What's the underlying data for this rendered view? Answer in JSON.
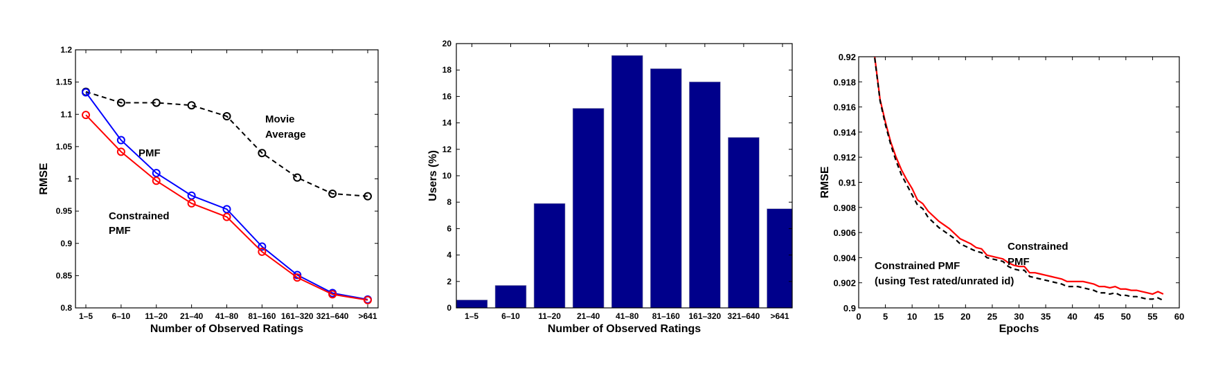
{
  "chart_data": [
    {
      "type": "line",
      "title": "",
      "xlabel": "Number of Observed Ratings",
      "ylabel": "RMSE",
      "categories": [
        "1–5",
        "6–10",
        "11–20",
        "21–40",
        "41–80",
        "81–160",
        "161–320",
        "321–640",
        ">641"
      ],
      "ylim": [
        0.8,
        1.2
      ],
      "yticks": [
        "0.8",
        "0.85",
        "0.9",
        "0.95",
        "1",
        "1.05",
        "1.1",
        "1.15",
        "1.2"
      ],
      "grid": false,
      "series": [
        {
          "name": "Movie Average",
          "color": "#000000",
          "style": "dashed",
          "marker": "circle",
          "values": [
            1.135,
            1.118,
            1.118,
            1.114,
            1.097,
            1.04,
            1.002,
            0.977,
            0.973
          ]
        },
        {
          "name": "PMF",
          "color": "#0000ff",
          "style": "solid",
          "marker": "circle",
          "values": [
            1.134,
            1.06,
            1.009,
            0.974,
            0.953,
            0.895,
            0.851,
            0.823,
            0.813
          ]
        },
        {
          "name": "Constrained PMF",
          "color": "#ff0000",
          "style": "solid",
          "marker": "circle",
          "values": [
            1.099,
            1.042,
            0.997,
            0.962,
            0.941,
            0.887,
            0.847,
            0.821,
            0.812
          ]
        }
      ],
      "annotations": [
        {
          "text": [
            "Movie",
            "Average"
          ]
        },
        {
          "text": [
            "PMF"
          ]
        },
        {
          "text": [
            "Constrained",
            "PMF"
          ]
        }
      ]
    },
    {
      "type": "bar",
      "title": "",
      "xlabel": "Number of Observed Ratings",
      "ylabel": "Users (%)",
      "categories": [
        "1–5",
        "6–10",
        "11–20",
        "21–40",
        "41–80",
        "81–160",
        "161–320",
        "321–640",
        ">641"
      ],
      "values": [
        0.6,
        1.7,
        7.9,
        15.1,
        19.1,
        18.1,
        17.1,
        12.9,
        7.5
      ],
      "ylim": [
        0,
        20
      ],
      "yticks": [
        "0",
        "2",
        "4",
        "6",
        "8",
        "10",
        "12",
        "14",
        "16",
        "18",
        "20"
      ],
      "bar_color": "#00008b",
      "grid": false
    },
    {
      "type": "line",
      "title": "",
      "xlabel": "Epochs",
      "ylabel": "RMSE",
      "xlim": [
        0,
        60
      ],
      "ylim": [
        0.9,
        0.92
      ],
      "xticks": [
        "0",
        "5",
        "10",
        "15",
        "20",
        "25",
        "30",
        "35",
        "40",
        "45",
        "50",
        "55",
        "60"
      ],
      "yticks": [
        "0.9",
        "0.902",
        "0.904",
        "0.906",
        "0.908",
        "0.91",
        "0.912",
        "0.914",
        "0.916",
        "0.918",
        "0.92"
      ],
      "grid": false,
      "x": [
        3,
        4,
        5,
        6,
        7,
        8,
        9,
        10,
        11,
        12,
        13,
        14,
        15,
        16,
        17,
        18,
        19,
        20,
        21,
        22,
        23,
        24,
        25,
        26,
        27,
        28,
        29,
        30,
        31,
        32,
        33,
        34,
        35,
        36,
        37,
        38,
        39,
        40,
        41,
        42,
        43,
        44,
        45,
        46,
        47,
        48,
        49,
        50,
        51,
        52,
        53,
        54,
        55,
        56,
        57
      ],
      "series": [
        {
          "name": "Constrained PMF",
          "color": "#ff0000",
          "style": "solid",
          "values": [
            0.92,
            0.9166,
            0.9148,
            0.9132,
            0.912,
            0.911,
            0.9102,
            0.9095,
            0.9086,
            0.9083,
            0.9077,
            0.9073,
            0.9069,
            0.9066,
            0.9063,
            0.9059,
            0.9055,
            0.9053,
            0.9051,
            0.9048,
            0.9047,
            0.9042,
            0.9041,
            0.904,
            0.9039,
            0.9036,
            0.9034,
            0.9033,
            0.9033,
            0.9028,
            0.9028,
            0.9027,
            0.9026,
            0.9025,
            0.9024,
            0.9023,
            0.9021,
            0.9021,
            0.9021,
            0.9021,
            0.902,
            0.9019,
            0.9017,
            0.9017,
            0.9016,
            0.9017,
            0.9015,
            0.9015,
            0.9014,
            0.9014,
            0.9013,
            0.9012,
            0.9011,
            0.9013,
            0.9011
          ]
        },
        {
          "name": "Constrained PMF (using Test rated/unrated id)",
          "color": "#000000",
          "style": "dashed",
          "values": [
            0.9199,
            0.9165,
            0.9146,
            0.913,
            0.9117,
            0.9106,
            0.9098,
            0.909,
            0.9082,
            0.9079,
            0.9072,
            0.9068,
            0.9064,
            0.9061,
            0.9058,
            0.9055,
            0.9051,
            0.9049,
            0.9047,
            0.9045,
            0.9044,
            0.904,
            0.9039,
            0.9038,
            0.9037,
            0.9033,
            0.9031,
            0.903,
            0.903,
            0.9025,
            0.9024,
            0.9023,
            0.9022,
            0.9021,
            0.902,
            0.9019,
            0.9017,
            0.9017,
            0.9017,
            0.9016,
            0.9015,
            0.9014,
            0.9012,
            0.9012,
            0.9011,
            0.9012,
            0.901,
            0.901,
            0.9009,
            0.9009,
            0.9008,
            0.9007,
            0.9007,
            0.9008,
            0.9006
          ]
        }
      ],
      "annotations": [
        {
          "text": [
            "Constrained",
            "PMF"
          ]
        },
        {
          "text": [
            "Constrained PMF",
            "(using Test rated/unrated id)"
          ]
        }
      ]
    }
  ]
}
